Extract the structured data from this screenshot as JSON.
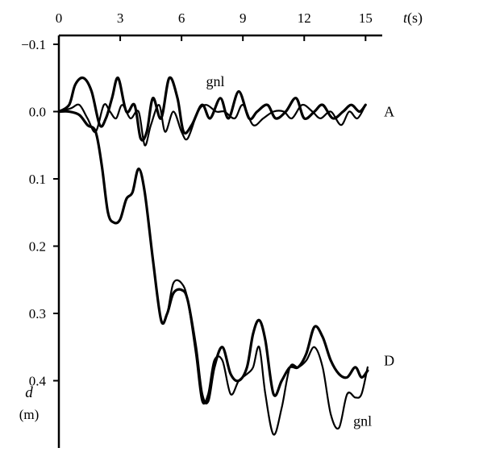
{
  "chart_data": {
    "type": "line",
    "x_axis": {
      "label_var": "t",
      "label_unit": "(s)",
      "ticks": [
        0,
        3,
        6,
        9,
        12,
        15
      ],
      "range": [
        0,
        15.5
      ],
      "position": "top"
    },
    "y_axis": {
      "label_var": "d",
      "label_unit": "(m)",
      "ticks": [
        -0.1,
        0.0,
        0.1,
        0.2,
        0.3,
        0.4
      ],
      "tick_labels": [
        "−0.1",
        "0.0",
        "0.1",
        "0.2",
        "0.3",
        "0.4"
      ],
      "range": [
        -0.1,
        0.5
      ],
      "inverted": true
    },
    "grid": false,
    "annotations": [
      {
        "text": "gnl",
        "x": 7.2,
        "y": -0.045
      },
      {
        "text": "A",
        "x": 15.9,
        "y": 0.0
      },
      {
        "text": "D",
        "x": 15.9,
        "y": 0.37
      },
      {
        "text": "gnl",
        "x": 14.4,
        "y": 0.46
      }
    ],
    "series": [
      {
        "group": "A",
        "variant": "gnl",
        "stroke_width": 3.2,
        "x": [
          0,
          0.5,
          0.8,
          1.2,
          1.6,
          2.0,
          2.3,
          2.6,
          2.9,
          3.3,
          3.7,
          4.0,
          4.3,
          4.6,
          5.0,
          5.4,
          5.8,
          6.1,
          6.5,
          7.0,
          7.4,
          7.9,
          8.3,
          8.8,
          9.3,
          9.7,
          10.2,
          10.6,
          11.1,
          11.6,
          12.0,
          12.5,
          12.9,
          13.4,
          13.9,
          14.3,
          14.7,
          15.0
        ],
        "y": [
          0.0,
          -0.01,
          -0.04,
          -0.05,
          -0.03,
          0.02,
          0.01,
          -0.02,
          -0.05,
          0.0,
          -0.01,
          0.04,
          0.03,
          -0.02,
          0.01,
          -0.05,
          -0.02,
          0.03,
          0.02,
          -0.01,
          0.01,
          -0.02,
          0.01,
          -0.03,
          0.01,
          0.0,
          -0.01,
          0.01,
          0.0,
          -0.02,
          0.01,
          0.0,
          -0.01,
          0.01,
          0.0,
          -0.01,
          0.0,
          -0.01
        ]
      },
      {
        "group": "A",
        "variant": "measured",
        "stroke_width": 2.2,
        "x": [
          0,
          0.6,
          1.0,
          1.4,
          1.8,
          2.2,
          2.5,
          2.8,
          3.1,
          3.5,
          3.9,
          4.2,
          4.5,
          4.9,
          5.2,
          5.6,
          6.0,
          6.3,
          6.8,
          7.2,
          7.7,
          8.1,
          8.6,
          9.0,
          9.5,
          10.0,
          10.5,
          11.0,
          11.4,
          11.9,
          12.4,
          12.8,
          13.3,
          13.8,
          14.2,
          14.6,
          15.0
        ],
        "y": [
          0.0,
          -0.005,
          -0.01,
          0.01,
          0.03,
          -0.01,
          0.0,
          0.01,
          -0.01,
          0.01,
          0.0,
          0.05,
          0.02,
          -0.01,
          0.03,
          0.0,
          0.03,
          0.04,
          0.0,
          -0.01,
          0.0,
          0.0,
          0.01,
          -0.01,
          0.02,
          0.01,
          0.0,
          0.0,
          0.01,
          -0.01,
          0.0,
          0.01,
          0.0,
          0.02,
          0.0,
          0.01,
          -0.01
        ]
      },
      {
        "group": "D",
        "variant": "measured",
        "stroke_width": 3.2,
        "x": [
          0,
          0.5,
          1.0,
          1.4,
          1.8,
          2.1,
          2.4,
          2.7,
          3.0,
          3.3,
          3.6,
          3.9,
          4.2,
          4.6,
          5.0,
          5.3,
          5.6,
          6.0,
          6.3,
          6.7,
          7.0,
          7.3,
          7.6,
          8.0,
          8.4,
          8.8,
          9.2,
          9.5,
          9.8,
          10.1,
          10.5,
          10.9,
          11.3,
          11.7,
          12.1,
          12.5,
          12.9,
          13.3,
          13.7,
          14.1,
          14.5,
          14.8,
          15.1
        ],
        "y": [
          0.0,
          0.0,
          0.005,
          0.02,
          0.03,
          0.08,
          0.15,
          0.165,
          0.16,
          0.13,
          0.12,
          0.085,
          0.12,
          0.22,
          0.31,
          0.3,
          0.27,
          0.265,
          0.28,
          0.35,
          0.42,
          0.43,
          0.38,
          0.35,
          0.39,
          0.4,
          0.38,
          0.33,
          0.31,
          0.34,
          0.42,
          0.4,
          0.38,
          0.38,
          0.36,
          0.32,
          0.335,
          0.37,
          0.39,
          0.395,
          0.38,
          0.395,
          0.385
        ]
      },
      {
        "group": "D",
        "variant": "gnl",
        "stroke_width": 2.2,
        "x": [
          0,
          0.5,
          1.0,
          1.4,
          1.8,
          2.1,
          2.4,
          2.7,
          3.0,
          3.3,
          3.6,
          3.9,
          4.2,
          4.6,
          5.0,
          5.3,
          5.6,
          6.0,
          6.3,
          6.7,
          7.0,
          7.3,
          7.6,
          8.0,
          8.4,
          8.8,
          9.2,
          9.5,
          9.8,
          10.1,
          10.5,
          10.9,
          11.3,
          11.7,
          12.1,
          12.5,
          12.9,
          13.3,
          13.7,
          14.1,
          14.5,
          14.8,
          15.1
        ],
        "y": [
          0.0,
          0.0,
          0.005,
          0.02,
          0.03,
          0.08,
          0.15,
          0.165,
          0.16,
          0.13,
          0.12,
          0.085,
          0.12,
          0.22,
          0.31,
          0.3,
          0.255,
          0.255,
          0.28,
          0.36,
          0.43,
          0.42,
          0.37,
          0.37,
          0.42,
          0.4,
          0.39,
          0.38,
          0.35,
          0.42,
          0.48,
          0.44,
          0.38,
          0.38,
          0.37,
          0.35,
          0.38,
          0.45,
          0.47,
          0.42,
          0.425,
          0.42,
          0.38
        ]
      }
    ]
  }
}
